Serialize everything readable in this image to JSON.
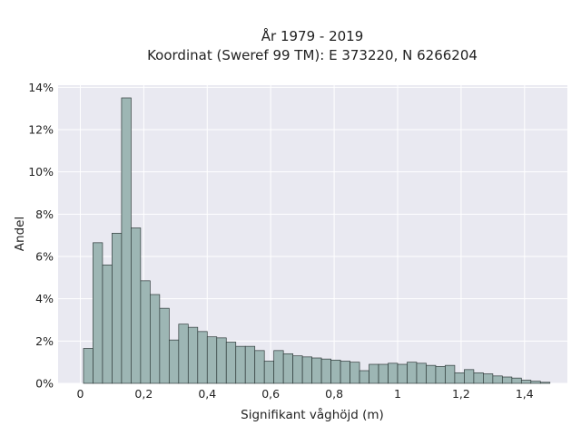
{
  "chart_data": {
    "type": "bar",
    "title_lines": [
      "År 1979 - 2019",
      "Koordinat (Sweref 99 TM): E 373220, N 6266204"
    ],
    "xlabel": "Signifikant våghöjd (m)",
    "ylabel": "Andel",
    "x_tick_labels": [
      "0",
      "0,2",
      "0,4",
      "0,6",
      "0,8",
      "1",
      "1,2",
      "1,4"
    ],
    "x_ticks": [
      0,
      0.2,
      0.4,
      0.6,
      0.8,
      1.0,
      1.2,
      1.4
    ],
    "y_tick_labels": [
      "0%",
      "2%",
      "4%",
      "6%",
      "8%",
      "10%",
      "12%",
      "14%"
    ],
    "y_ticks": [
      0,
      2,
      4,
      6,
      8,
      10,
      12,
      14
    ],
    "xlim": [
      -0.07,
      1.535
    ],
    "ylim": [
      0,
      14.1
    ],
    "grid": true,
    "background": "#e9e9f1",
    "bar_color": "#9db6b4",
    "bar_edge_color": "#2f3b3a",
    "bin_width": 0.03,
    "bin_starts": [
      0.01,
      0.04,
      0.07,
      0.1,
      0.13,
      0.16,
      0.19,
      0.22,
      0.25,
      0.28,
      0.31,
      0.34,
      0.37,
      0.4,
      0.43,
      0.46,
      0.49,
      0.52,
      0.55,
      0.58,
      0.61,
      0.64,
      0.67,
      0.7,
      0.73,
      0.76,
      0.79,
      0.82,
      0.85,
      0.88,
      0.91,
      0.94,
      0.97,
      1.0,
      1.03,
      1.06,
      1.09,
      1.12,
      1.15,
      1.18,
      1.21,
      1.24,
      1.27,
      1.3,
      1.33,
      1.36,
      1.39,
      1.42,
      1.45
    ],
    "values": [
      1.65,
      6.65,
      5.6,
      7.1,
      13.5,
      7.35,
      4.85,
      4.2,
      3.55,
      2.05,
      2.8,
      2.65,
      2.45,
      2.2,
      2.15,
      1.95,
      1.75,
      1.75,
      1.55,
      1.05,
      1.55,
      1.4,
      1.3,
      1.25,
      1.2,
      1.15,
      1.1,
      1.05,
      1.0,
      0.6,
      0.9,
      0.9,
      0.95,
      0.9,
      1.0,
      0.95,
      0.85,
      0.8,
      0.85,
      0.5,
      0.65,
      0.5,
      0.45,
      0.35,
      0.3,
      0.25,
      0.15,
      0.1,
      0.05
    ]
  }
}
